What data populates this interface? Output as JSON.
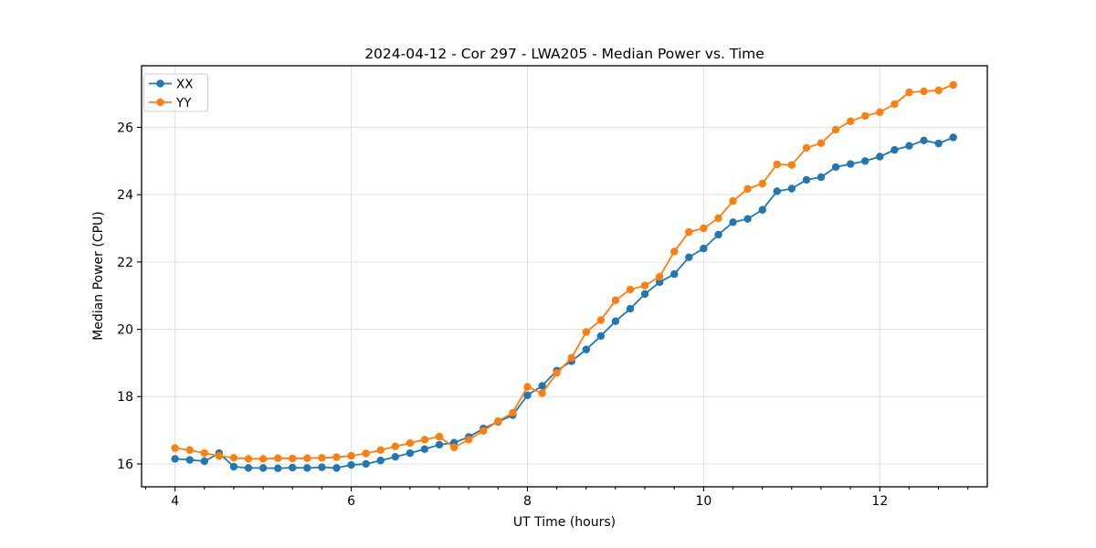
{
  "chart": {
    "title": "2024-04-12 - Cor 297 - LWA205 - Median Power vs. Time",
    "xlabel": "UT Time (hours)",
    "ylabel": "Median Power (CPU)"
  },
  "chart_data": {
    "type": "line",
    "title": "2024-04-12 - Cor 297 - LWA205 - Median Power vs. Time",
    "xlabel": "UT Time (hours)",
    "ylabel": "Median Power (CPU)",
    "xlim": [
      3.62,
      13.22
    ],
    "ylim": [
      15.32,
      27.83
    ],
    "xticks": [
      4,
      6,
      8,
      10,
      12
    ],
    "yticks": [
      16,
      18,
      20,
      22,
      24,
      26
    ],
    "x_minor_step": 0.3333,
    "grid": true,
    "legend_position": "upper-left",
    "marker": "circle",
    "x": [
      4.0,
      4.167,
      4.333,
      4.5,
      4.667,
      4.833,
      5.0,
      5.167,
      5.333,
      5.5,
      5.667,
      5.833,
      6.0,
      6.167,
      6.333,
      6.5,
      6.667,
      6.833,
      7.0,
      7.167,
      7.333,
      7.5,
      7.667,
      7.833,
      8.0,
      8.167,
      8.333,
      8.5,
      8.667,
      8.833,
      9.0,
      9.167,
      9.333,
      9.5,
      9.667,
      9.833,
      10.0,
      10.167,
      10.333,
      10.5,
      10.667,
      10.833,
      11.0,
      11.167,
      11.333,
      11.5,
      11.667,
      11.833,
      12.0,
      12.167,
      12.333,
      12.5,
      12.667,
      12.833
    ],
    "series": [
      {
        "name": "XX",
        "color": "#1f77b4",
        "values": [
          16.15,
          16.12,
          16.08,
          16.32,
          15.92,
          15.88,
          15.88,
          15.87,
          15.89,
          15.88,
          15.9,
          15.88,
          15.97,
          16.0,
          16.1,
          16.21,
          16.32,
          16.44,
          16.57,
          16.63,
          16.8,
          17.05,
          17.25,
          17.45,
          18.04,
          18.32,
          18.77,
          19.05,
          19.4,
          19.8,
          20.24,
          20.61,
          21.05,
          21.4,
          21.64,
          22.14,
          22.4,
          22.81,
          23.18,
          23.28,
          23.55,
          24.1,
          24.18,
          24.44,
          24.52,
          24.82,
          24.91,
          25.0,
          25.13,
          25.33,
          25.45,
          25.61,
          25.52,
          25.7
        ]
      },
      {
        "name": "YY",
        "color": "#ff7f0e",
        "values": [
          16.47,
          16.41,
          16.32,
          16.24,
          16.18,
          16.15,
          16.15,
          16.17,
          16.16,
          16.17,
          16.18,
          16.2,
          16.24,
          16.31,
          16.41,
          16.52,
          16.62,
          16.72,
          16.81,
          16.49,
          16.72,
          16.98,
          17.27,
          17.52,
          18.29,
          18.1,
          18.7,
          19.15,
          19.92,
          20.27,
          20.86,
          21.18,
          21.3,
          21.56,
          22.31,
          22.89,
          23.0,
          23.3,
          23.81,
          24.17,
          24.33,
          24.9,
          24.88,
          25.39,
          25.53,
          25.93,
          26.18,
          26.34,
          26.45,
          26.69,
          27.04,
          27.07,
          27.1,
          27.26
        ]
      }
    ],
    "colors": {
      "grid": "#e0e0e0",
      "spine": "#000000",
      "legend_border": "#cccccc",
      "background": "#ffffff"
    }
  }
}
